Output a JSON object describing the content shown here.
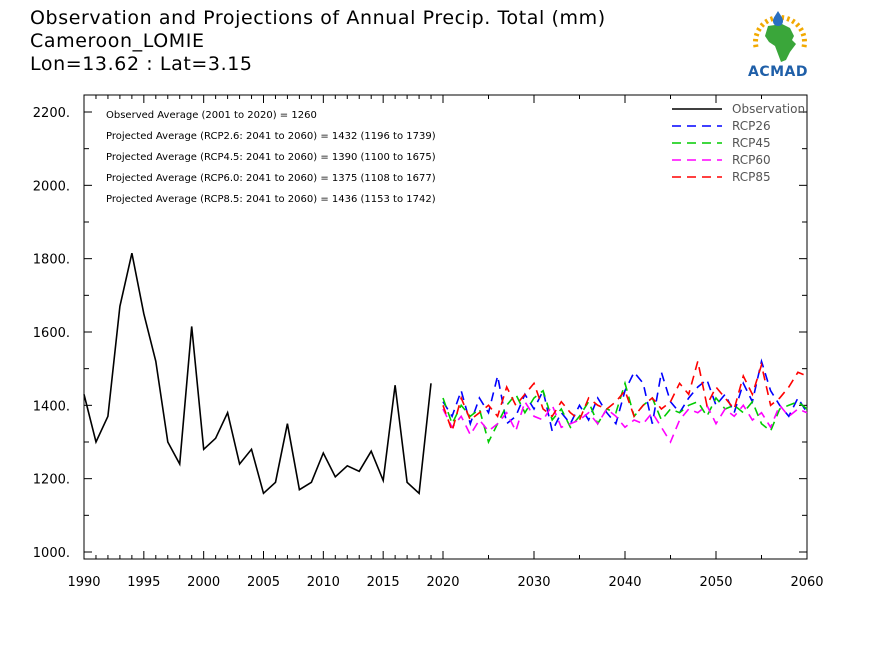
{
  "header": {
    "title": "Observation and Projections of Annual Precip. Total (mm)",
    "location": "Cameroon_LOMIE",
    "coords": "Lon=13.62 : Lat=3.15"
  },
  "logo": {
    "text": "ACMAD",
    "colors": {
      "africa": "#3aa63a",
      "rays": "#f2a900",
      "drop": "#2a6fc0",
      "text": "#1f5fa8"
    }
  },
  "annotations": [
    "Observed Average (2001 to 2020) = 1260",
    "Projected Average (RCP2.6: 2041 to 2060) = 1432 (1196 to 1739)",
    "Projected Average (RCP4.5: 2041 to 2060) = 1390 (1100 to 1675)",
    "Projected Average (RCP6.0: 2041 to 2060) = 1375 (1108 to 1677)",
    "Projected Average (RCP8.5: 2041 to 2060) = 1436 (1153 to 1742)"
  ],
  "chart_data": {
    "type": "line",
    "xlim": [
      1990,
      2060
    ],
    "ylim": [
      1000,
      2200
    ],
    "x_ticks": [
      "1990",
      "1995",
      "2000",
      "2005",
      "2010",
      "2015",
      "2020",
      "2030",
      "2040",
      "2050",
      "2060"
    ],
    "y_ticks": [
      "2200.",
      "2000.",
      "1800.",
      "1600.",
      "1400.",
      "1200.",
      "1000."
    ],
    "legend_position": "top-right",
    "series": [
      {
        "name": "Observation",
        "color": "#000000",
        "dash": "solid",
        "x": [
          1990,
          1991,
          1992,
          1993,
          1994,
          1995,
          1996,
          1997,
          1998,
          1999,
          2000,
          2001,
          2002,
          2003,
          2004,
          2005,
          2006,
          2007,
          2008,
          2009,
          2010,
          2011,
          2012,
          2013,
          2014,
          2015,
          2016,
          2017,
          2018,
          2019
        ],
        "y": [
          1430,
          1300,
          1370,
          1670,
          1815,
          1650,
          1520,
          1300,
          1240,
          1615,
          1280,
          1310,
          1380,
          1240,
          1280,
          1160,
          1190,
          1350,
          1170,
          1190,
          1270,
          1205,
          1235,
          1220,
          1275,
          1195,
          1455,
          1190,
          1160,
          1460
        ]
      },
      {
        "name": "RCP26",
        "color": "#0000ff",
        "dash": "dashed",
        "x": [
          2020,
          2021,
          2022,
          2023,
          2024,
          2025,
          2026,
          2027,
          2028,
          2029,
          2030,
          2031,
          2032,
          2033,
          2034,
          2035,
          2036,
          2037,
          2038,
          2039,
          2040,
          2041,
          2042,
          2043,
          2044,
          2045,
          2046,
          2047,
          2048,
          2049,
          2050,
          2051,
          2052,
          2053,
          2054,
          2055,
          2056,
          2057,
          2058,
          2059,
          2060
        ],
        "y": [
          1410,
          1370,
          1440,
          1350,
          1420,
          1380,
          1480,
          1350,
          1370,
          1430,
          1390,
          1440,
          1330,
          1380,
          1350,
          1400,
          1360,
          1420,
          1380,
          1350,
          1440,
          1490,
          1460,
          1350,
          1490,
          1410,
          1380,
          1420,
          1450,
          1470,
          1400,
          1430,
          1380,
          1460,
          1410,
          1520,
          1440,
          1400,
          1370,
          1420,
          1380
        ]
      },
      {
        "name": "RCP45",
        "color": "#00cc00",
        "dash": "dashed",
        "x": [
          2020,
          2021,
          2022,
          2023,
          2024,
          2025,
          2026,
          2027,
          2028,
          2029,
          2030,
          2031,
          2032,
          2033,
          2034,
          2035,
          2036,
          2037,
          2038,
          2039,
          2040,
          2041,
          2042,
          2043,
          2044,
          2045,
          2046,
          2047,
          2048,
          2049,
          2050,
          2051,
          2052,
          2053,
          2054,
          2055,
          2056,
          2057,
          2058,
          2059,
          2060
        ],
        "y": [
          1420,
          1350,
          1400,
          1370,
          1390,
          1300,
          1350,
          1400,
          1430,
          1380,
          1420,
          1440,
          1360,
          1390,
          1340,
          1370,
          1410,
          1350,
          1390,
          1380,
          1460,
          1370,
          1400,
          1420,
          1360,
          1390,
          1380,
          1400,
          1410,
          1370,
          1420,
          1390,
          1400,
          1380,
          1410,
          1350,
          1330,
          1390,
          1400,
          1410,
          1390
        ]
      },
      {
        "name": "RCP60",
        "color": "#ff00ff",
        "dash": "dashed",
        "x": [
          2020,
          2021,
          2022,
          2023,
          2024,
          2025,
          2026,
          2027,
          2028,
          2029,
          2030,
          2031,
          2032,
          2033,
          2034,
          2035,
          2036,
          2037,
          2038,
          2039,
          2040,
          2041,
          2042,
          2043,
          2044,
          2045,
          2046,
          2047,
          2048,
          2049,
          2050,
          2051,
          2052,
          2053,
          2054,
          2055,
          2056,
          2057,
          2058,
          2059,
          2060
        ],
        "y": [
          1390,
          1340,
          1370,
          1320,
          1360,
          1330,
          1350,
          1380,
          1330,
          1410,
          1370,
          1360,
          1400,
          1340,
          1350,
          1360,
          1380,
          1350,
          1390,
          1370,
          1340,
          1360,
          1350,
          1380,
          1340,
          1300,
          1360,
          1390,
          1380,
          1400,
          1350,
          1390,
          1370,
          1400,
          1360,
          1380,
          1340,
          1400,
          1370,
          1390,
          1380
        ]
      },
      {
        "name": "RCP85",
        "color": "#ff0000",
        "dash": "dashed",
        "x": [
          2020,
          2021,
          2022,
          2023,
          2024,
          2025,
          2026,
          2027,
          2028,
          2029,
          2030,
          2031,
          2032,
          2033,
          2034,
          2035,
          2036,
          2037,
          2038,
          2039,
          2040,
          2041,
          2042,
          2043,
          2044,
          2045,
          2046,
          2047,
          2048,
          2049,
          2050,
          2051,
          2052,
          2053,
          2054,
          2055,
          2056,
          2057,
          2058,
          2059,
          2060
        ],
        "y": [
          1400,
          1330,
          1420,
          1360,
          1380,
          1400,
          1370,
          1450,
          1400,
          1430,
          1460,
          1390,
          1370,
          1410,
          1380,
          1360,
          1420,
          1400,
          1390,
          1410,
          1440,
          1370,
          1400,
          1420,
          1390,
          1410,
          1460,
          1430,
          1520,
          1400,
          1450,
          1420,
          1390,
          1480,
          1430,
          1510,
          1400,
          1420,
          1450,
          1490,
          1480
        ]
      }
    ]
  }
}
